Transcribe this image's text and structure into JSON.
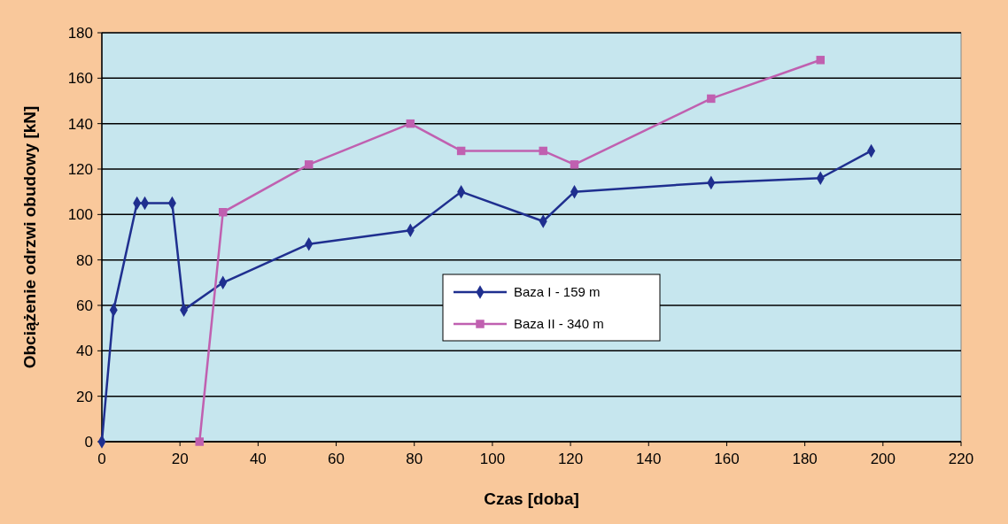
{
  "chart_data": {
    "type": "line",
    "xlabel": "Czas [doba]",
    "ylabel": "Obciążenie odrzwi obudowy [kN]",
    "xlim": [
      0,
      220
    ],
    "xticks": [
      0,
      20,
      40,
      60,
      80,
      100,
      120,
      140,
      160,
      180,
      200,
      220
    ],
    "ylim": [
      0,
      180
    ],
    "yticks": [
      0,
      20,
      40,
      60,
      80,
      100,
      120,
      140,
      160,
      180
    ],
    "grid": "y",
    "legend": "center",
    "series": [
      {
        "name": "Baza I - 159 m",
        "color": "#1f2f8f",
        "marker": "diamond",
        "x": [
          0,
          3,
          9,
          11,
          18,
          21,
          31,
          53,
          79,
          92,
          113,
          121,
          156,
          184,
          197
        ],
        "values": [
          0,
          58,
          105,
          105,
          105,
          58,
          70,
          87,
          93,
          110,
          97,
          110,
          114,
          116,
          128
        ]
      },
      {
        "name": "Baza II - 340 m",
        "color": "#c060b0",
        "marker": "square",
        "x": [
          25,
          31,
          53,
          79,
          92,
          113,
          121,
          156,
          184
        ],
        "values": [
          0,
          101,
          122,
          140,
          128,
          128,
          122,
          151,
          168
        ]
      }
    ]
  }
}
